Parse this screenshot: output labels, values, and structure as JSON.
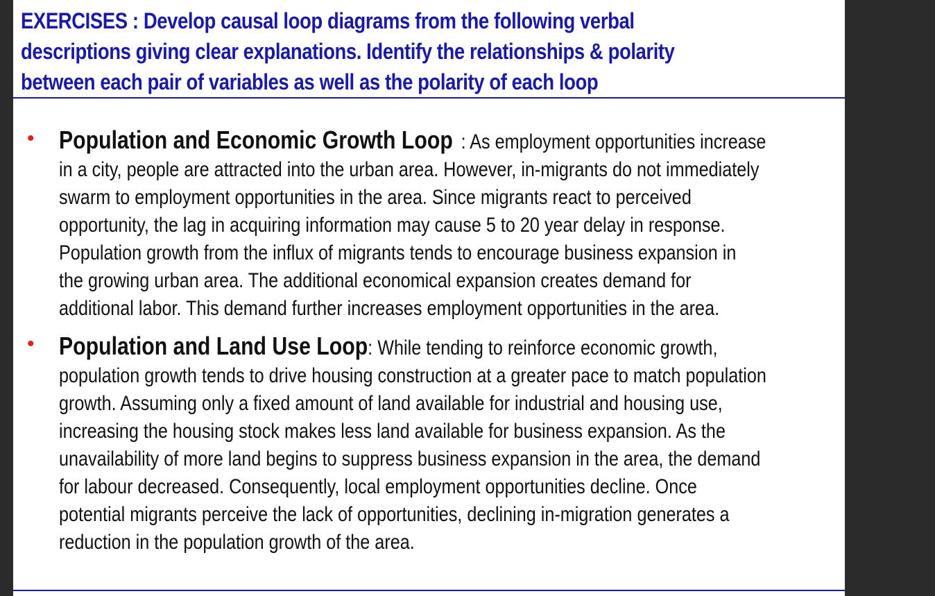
{
  "title": {
    "lines": [
      "EXERCISES :   Develop causal loop diagrams from the following verbal",
      "descriptions giving clear explanations.  Identify the relationships & polarity",
      "between each pair of variables as well as the polarity of each loop"
    ]
  },
  "bullets": [
    {
      "heading": "Population and Economic Growth Loop",
      "sep": ":",
      "lines": [
        "As employment opportunities increase",
        "in a city, people are attracted into the urban area. However, in-migrants do not immediately",
        "swarm to employment opportunities in the area.  Since migrants react to perceived",
        "opportunity, the lag in acquiring information may cause 5 to 20 year delay in response.",
        "Population growth  from the influx of migrants tends to  encourage business expansion in",
        "the growing urban area.  The additional economical expansion creates demand  for",
        "additional labor.  This demand further increases employment opportunities in the area."
      ]
    },
    {
      "heading": "Population and Land Use Loop",
      "sep": ":",
      "lines": [
        "While tending to reinforce economic growth,",
        "population growth tends to drive housing construction at a greater pace to match population",
        "growth.  Assuming only a fixed amount of land available for industrial and housing use,",
        "increasing the housing stock makes less land available for business expansion.  As the",
        "unavailability of more land begins to suppress business expansion in the area, the demand",
        "for labour decreased.  Consequently, local employment opportunities decline. Once",
        "potential migrants perceive the lack of opportunities, declining in-migration generates a",
        "reduction in the population growth of the area."
      ]
    }
  ],
  "colors": {
    "title": "#1a1aa6",
    "bullet": "#e0201b",
    "body": "#111111",
    "background": "#ffffff",
    "frame": "#2b2b2b"
  }
}
